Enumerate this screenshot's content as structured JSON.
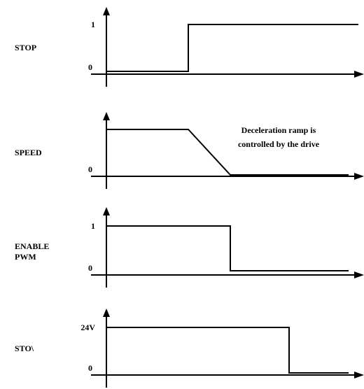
{
  "diagram": {
    "panels": [
      {
        "id": "stop",
        "name_lines": [
          "STOP"
        ],
        "tick_high": "1",
        "tick_low": "0",
        "waveform": [
          [
            "t0",
            "low"
          ],
          [
            "t1",
            "low"
          ],
          [
            "t1",
            "high"
          ],
          [
            "end",
            "high"
          ]
        ]
      },
      {
        "id": "speed",
        "name_lines": [
          "SPEED"
        ],
        "tick_high": "",
        "tick_low": "0",
        "annotation_lines": [
          "Deceleration ramp is",
          "controlled by the drive"
        ],
        "waveform": [
          [
            "t0",
            "high"
          ],
          [
            "t1",
            "high"
          ],
          [
            "t2",
            "low"
          ],
          [
            "end_short",
            "low"
          ]
        ]
      },
      {
        "id": "enable-pwm",
        "name_lines": [
          "ENABLE",
          "PWM"
        ],
        "tick_high": "1",
        "tick_low": "0",
        "waveform": [
          [
            "t0",
            "high"
          ],
          [
            "t2",
            "high"
          ],
          [
            "t2",
            "low"
          ],
          [
            "end_short",
            "low"
          ]
        ]
      },
      {
        "id": "sto",
        "name_lines": [
          "STO\\"
        ],
        "tick_high": "24V",
        "tick_low": "0",
        "waveform": [
          [
            "t0",
            "high"
          ],
          [
            "t3",
            "high"
          ],
          [
            "t3",
            "low"
          ],
          [
            "end_short",
            "low"
          ]
        ]
      }
    ]
  }
}
